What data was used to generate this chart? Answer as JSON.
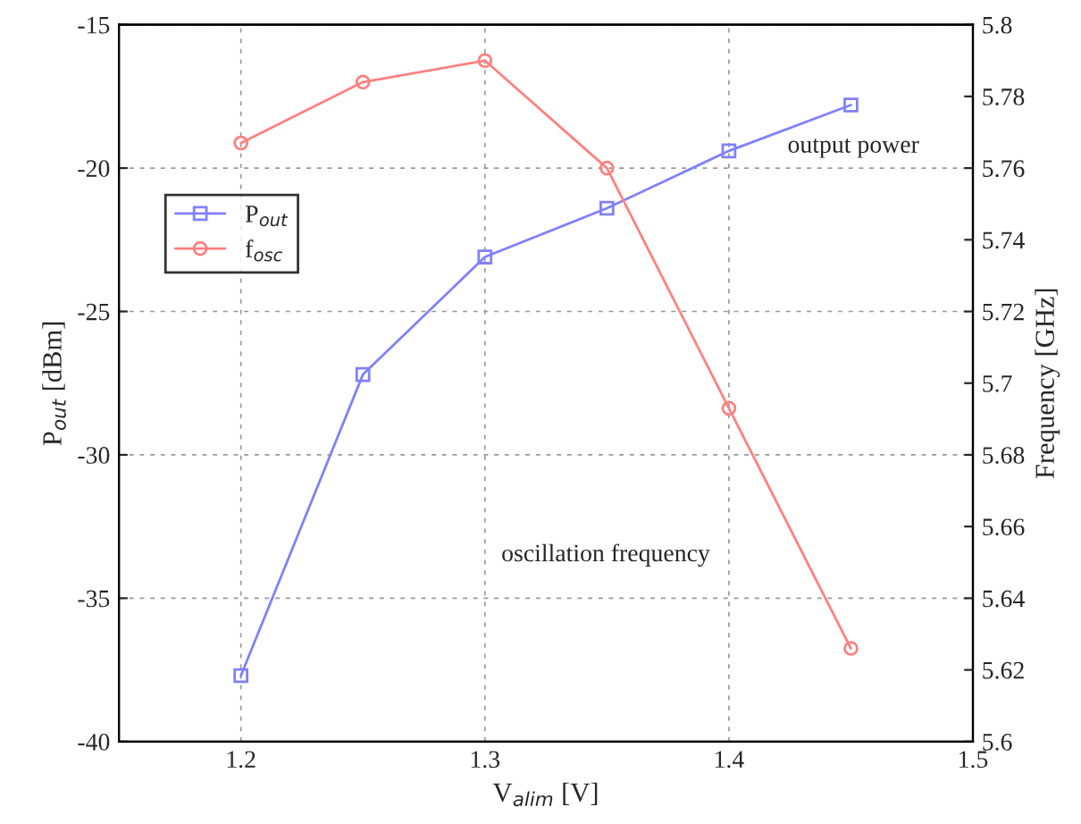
{
  "chart_data": {
    "type": "line",
    "xlabel": "V$_{alim}$ [V]",
    "ylabel": "P$_{out}$ [dBm]",
    "y2label": "Frequency [GHz]",
    "x": [
      1.2,
      1.25,
      1.3,
      1.35,
      1.4,
      1.45
    ],
    "series": [
      {
        "name": "P$_{out}$",
        "color": "#8080ff",
        "marker": "square",
        "values": [
          -37.7,
          -27.2,
          -23.1,
          -21.4,
          -19.4,
          -17.8
        ]
      },
      {
        "name": "f$_{osc}$",
        "color": "#ff8080",
        "marker": "circle",
        "axis": "y2",
        "values": [
          5.767,
          5.784,
          5.79,
          5.76,
          5.693,
          5.626
        ]
      }
    ],
    "xlim": [
      1.15,
      1.5
    ],
    "xticks": [
      1.2,
      1.3,
      1.4,
      1.5
    ],
    "ylim": [
      -40,
      -15
    ],
    "yticks": [
      -40,
      -35,
      -30,
      -25,
      -20,
      -15
    ],
    "y2lim": [
      5.6,
      5.8
    ],
    "y2ticks": [
      5.6,
      5.62,
      5.64,
      5.66,
      5.68,
      5.7,
      5.72,
      5.74,
      5.76,
      5.78,
      5.8
    ],
    "grid": true,
    "legend": "top left",
    "line_style": "solid",
    "annotations": [
      "output power",
      "oscillation frequency"
    ]
  }
}
